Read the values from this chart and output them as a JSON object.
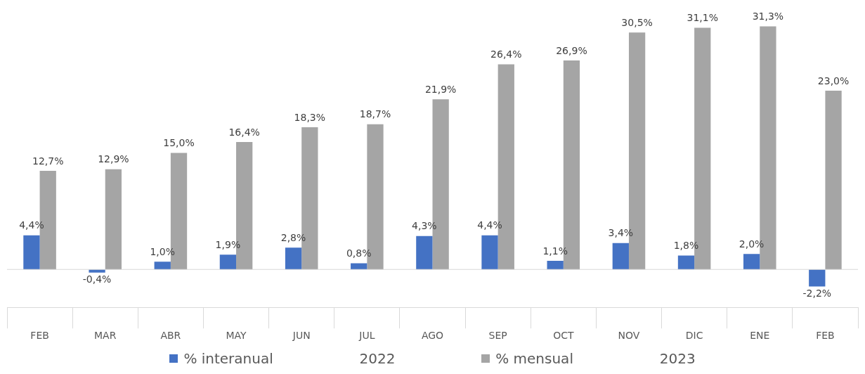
{
  "chart_data": {
    "type": "bar",
    "categories": [
      "FEB",
      "MAR",
      "ABR",
      "MAY",
      "JUN",
      "JUL",
      "AGO",
      "SEP",
      "OCT",
      "NOV",
      "DIC",
      "ENE",
      "FEB"
    ],
    "series": [
      {
        "name": "% interanual",
        "color": "#4472c4",
        "values": [
          4.4,
          -0.4,
          1.0,
          1.9,
          2.8,
          0.8,
          4.3,
          4.4,
          1.1,
          3.4,
          1.8,
          2.0,
          -2.2
        ],
        "value_labels": [
          "4,4%",
          "-0,4%",
          "1,0%",
          "1,9%",
          "2,8%",
          "0,8%",
          "4,3%",
          "4,4%",
          "1,1%",
          "3,4%",
          "1,8%",
          "2,0%",
          "-2,2%"
        ]
      },
      {
        "name": "% mensual",
        "color": "#a5a5a5",
        "values": [
          12.7,
          12.9,
          15.0,
          16.4,
          18.3,
          18.7,
          21.9,
          26.4,
          26.9,
          30.5,
          31.1,
          31.3,
          23.0
        ],
        "value_labels": [
          "12,7%",
          "12,9%",
          "15,0%",
          "16,4%",
          "18,3%",
          "18,7%",
          "21,9%",
          "26,4%",
          "26,9%",
          "30,5%",
          "31,1%",
          "31,3%",
          "23,0%"
        ]
      }
    ],
    "annotations": [
      "2022",
      "2023"
    ],
    "legend": "bottom",
    "grid": false
  }
}
